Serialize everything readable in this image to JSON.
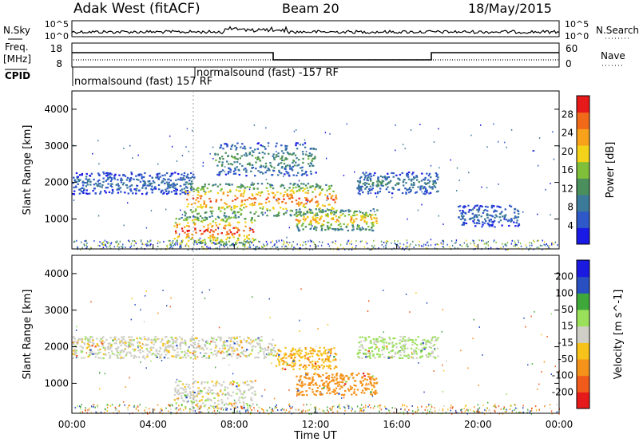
{
  "header": {
    "station": "Adak West (fitACF)",
    "beam": "Beam 20",
    "date": "18/May/2015"
  },
  "panels": {
    "nsky": {
      "left_label": "N.Sky",
      "right_label": "N.Search",
      "left_ticks": [
        "10^5",
        "10^0"
      ],
      "right_ticks": [
        "10^5",
        "10^0"
      ]
    },
    "freq": {
      "left_label_1": "Freq.",
      "left_label_2": "[MHz]",
      "right_label": "Nave",
      "left_ticks": [
        "18",
        "8"
      ],
      "right_ticks": [
        "60",
        "0"
      ],
      "cpid_label": "CPID",
      "cpid_entries": [
        "normalsound (fast) 157 RF",
        "normalsound (fast) -157 RF"
      ]
    }
  },
  "colors": {
    "power_scale": [
      "#1a1ae6",
      "#2f59c8",
      "#3c7a9a",
      "#4a8f5c",
      "#7fbf3a",
      "#f2d31a",
      "#f7a21a",
      "#f06a1a",
      "#e61a1a"
    ],
    "velocity_scale": [
      "#e61a1a",
      "#f05a1a",
      "#f5921a",
      "#f7c21a",
      "#cfcfc8",
      "#9be05a",
      "#3fa83a",
      "#2a4fc0",
      "#1a1ae0"
    ]
  },
  "chart_data": [
    {
      "type": "heatmap",
      "title": "",
      "ylabel": "Slant Range [km]",
      "xlabel": "",
      "y_ticks": [
        "1000",
        "2000",
        "3000",
        "4000"
      ],
      "ylim": [
        180,
        4500
      ],
      "xlim": [
        0,
        24
      ],
      "colorbar": {
        "label": "Power [dB]",
        "ticks": [
          "4",
          "8",
          "12",
          "16",
          "20",
          "24",
          "28"
        ],
        "range": [
          0,
          30
        ]
      },
      "echo_regions": [
        {
          "t_start": 0.0,
          "t_end": 6.0,
          "range_start": 1700,
          "range_end": 2300,
          "peak_db": 8
        },
        {
          "t_start": 5.5,
          "t_end": 13.0,
          "range_start": 1100,
          "range_end": 2000,
          "peak_db": 26
        },
        {
          "t_start": 5.0,
          "t_end": 9.0,
          "range_start": 300,
          "range_end": 1100,
          "peak_db": 28
        },
        {
          "t_start": 7.0,
          "t_end": 12.0,
          "range_start": 2200,
          "range_end": 3100,
          "peak_db": 12
        },
        {
          "t_start": 11.0,
          "t_end": 15.0,
          "range_start": 700,
          "range_end": 1300,
          "peak_db": 22
        },
        {
          "t_start": 14.0,
          "t_end": 18.0,
          "range_start": 1700,
          "range_end": 2300,
          "peak_db": 10
        },
        {
          "t_start": 19.0,
          "t_end": 22.0,
          "range_start": 800,
          "range_end": 1400,
          "peak_db": 8
        }
      ]
    },
    {
      "type": "heatmap",
      "title": "",
      "ylabel": "Slant Range [km]",
      "xlabel": "Time UT",
      "x_ticks": [
        "00:00",
        "04:00",
        "08:00",
        "12:00",
        "16:00",
        "20:00",
        "00:00"
      ],
      "y_ticks": [
        "1000",
        "2000",
        "3000",
        "4000"
      ],
      "ylim": [
        180,
        4500
      ],
      "xlim": [
        0,
        24
      ],
      "colorbar": {
        "label": "Velocity [m s^-1]",
        "ticks": [
          "200",
          "100",
          "50",
          "15",
          "-15",
          "-50",
          "-100",
          "-200"
        ],
        "range": [
          -250,
          250
        ]
      },
      "echo_regions": [
        {
          "t_start": 0.0,
          "t_end": 10.0,
          "range_start": 1700,
          "range_end": 2300,
          "mean_velocity": 0
        },
        {
          "t_start": 5.0,
          "t_end": 9.0,
          "range_start": 300,
          "range_end": 1100,
          "mean_velocity": 0
        },
        {
          "t_start": 10.0,
          "t_end": 13.0,
          "range_start": 1400,
          "range_end": 2000,
          "mean_velocity": -40
        },
        {
          "t_start": 11.0,
          "t_end": 15.0,
          "range_start": 700,
          "range_end": 1300,
          "mean_velocity": -80
        },
        {
          "t_start": 14.0,
          "t_end": 18.0,
          "range_start": 1700,
          "range_end": 2300,
          "mean_velocity": 20
        }
      ]
    }
  ]
}
